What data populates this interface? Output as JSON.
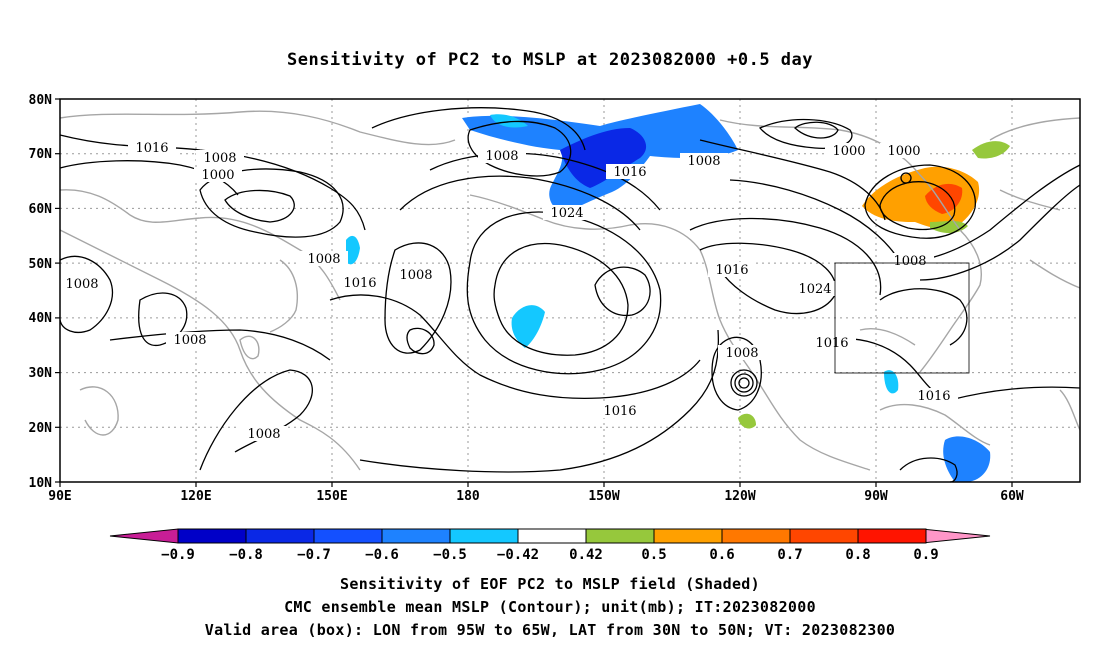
{
  "title": "Sensitivity of PC2 to MSLP at 2023082000 +0.5 day",
  "lat_labels": [
    "80N",
    "70N",
    "60N",
    "50N",
    "40N",
    "30N",
    "20N",
    "10N"
  ],
  "lon_labels": [
    "90E",
    "120E",
    "150E",
    "180",
    "150W",
    "120W",
    "90W",
    "60W"
  ],
  "contour_labels": [
    {
      "text": "1016"
    },
    {
      "text": "1008"
    },
    {
      "text": "1000"
    },
    {
      "text": "1008"
    },
    {
      "text": "1016"
    },
    {
      "text": "1024"
    },
    {
      "text": "1008"
    },
    {
      "text": "1000"
    },
    {
      "text": "1000"
    },
    {
      "text": "1008"
    },
    {
      "text": "1016"
    },
    {
      "text": "1016"
    },
    {
      "text": "1008"
    },
    {
      "text": "1008"
    },
    {
      "text": "1008"
    },
    {
      "text": "1024"
    },
    {
      "text": "1016"
    },
    {
      "text": "1008"
    },
    {
      "text": "1016"
    },
    {
      "text": "1016"
    },
    {
      "text": "1008"
    }
  ],
  "colorbar": {
    "labels": [
      "-0.9",
      "-0.8",
      "-0.7",
      "-0.6",
      "-0.5",
      "-0.42",
      "0.42",
      "0.5",
      "0.6",
      "0.7",
      "0.8",
      "0.9"
    ],
    "colors": [
      "#0000c8",
      "#0a28e6",
      "#1450ff",
      "#1e82ff",
      "#14c8ff",
      "#ffffff",
      "#96c83c",
      "#ffa000",
      "#ff7800",
      "#ff4600",
      "#ff1400"
    ],
    "low_end_color": "#c81e96",
    "high_end_color": "#ff96c8"
  },
  "caption": {
    "line1": "Sensitivity of EOF PC2 to MSLP field (Shaded)",
    "line2": "CMC ensemble mean MSLP (Contour); unit(mb); IT:2023082000",
    "line3": "Valid area (box): LON from 95W to 65W, LAT from 30N to 50N; VT: 2023082300"
  }
}
